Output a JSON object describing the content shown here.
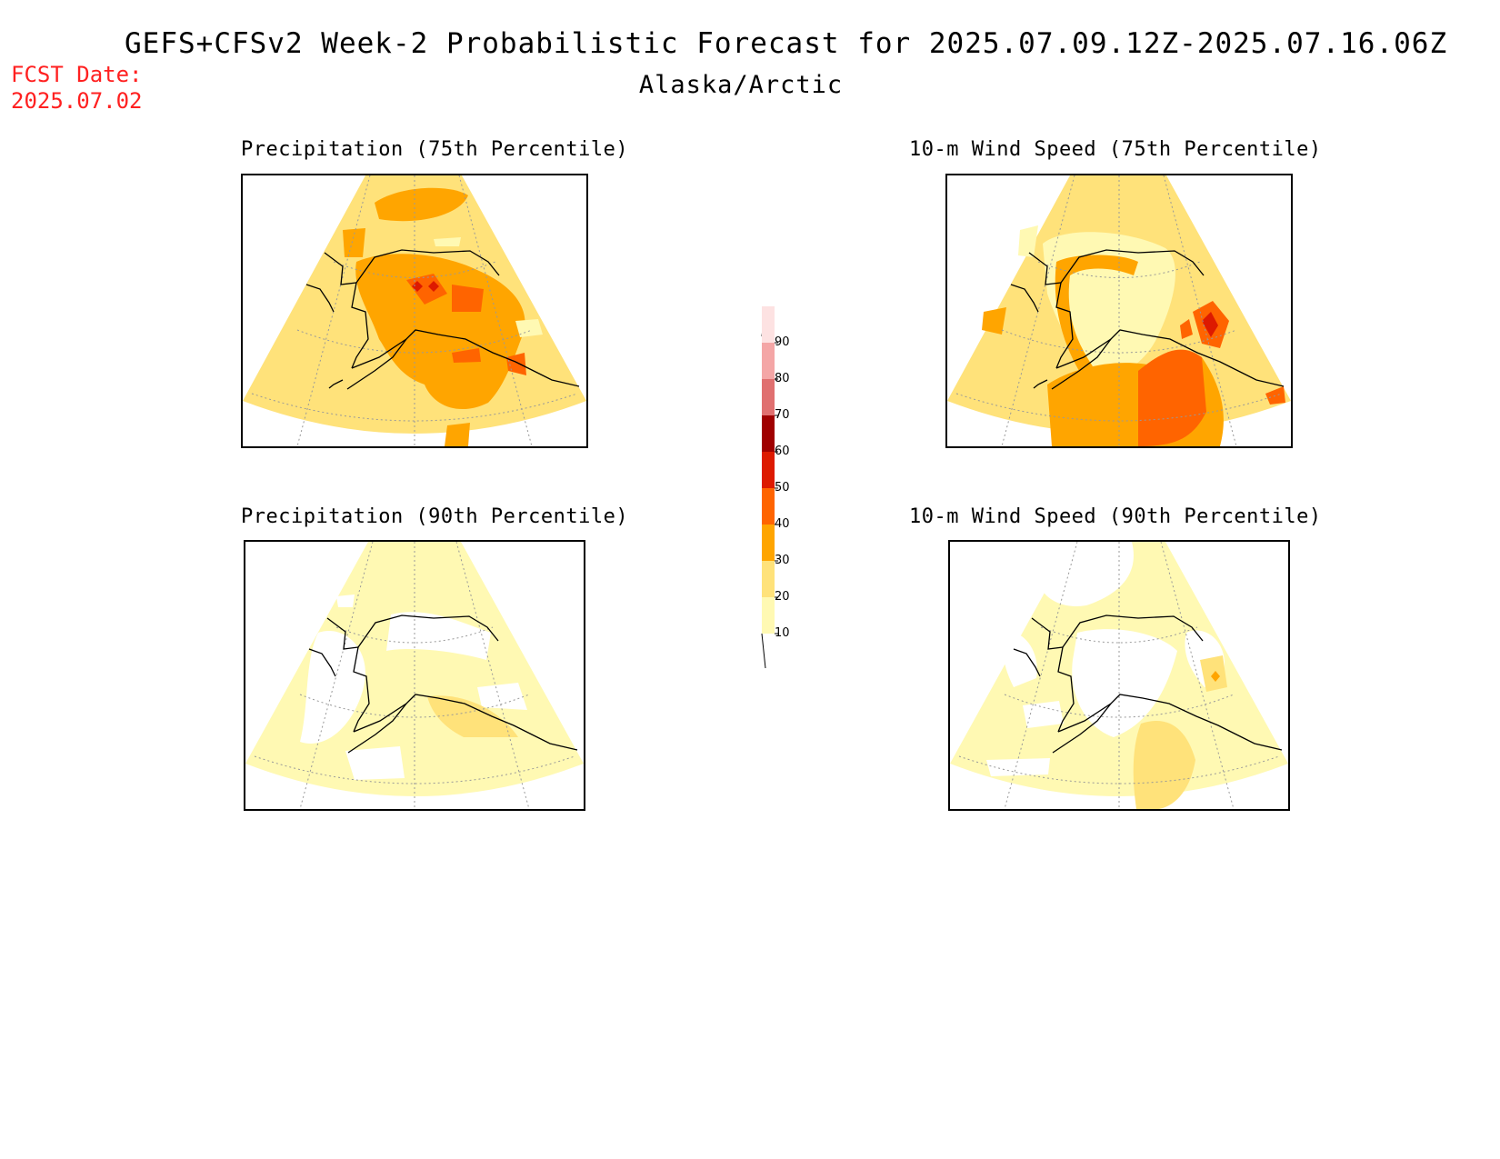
{
  "header": {
    "title": "GEFS+CFSv2 Week-2 Probabilistic Forecast for 2025.07.09.12Z-2025.07.16.06Z",
    "region": "Alaska/Arctic",
    "fcst_label": "FCST Date:",
    "fcst_date": "2025.07.02"
  },
  "panels": [
    {
      "title": "Precipitation (75th Percentile)"
    },
    {
      "title": "10-m Wind Speed (75th Percentile)"
    },
    {
      "title": "Precipitation (90th Percentile)"
    },
    {
      "title": "10-m Wind Speed (90th Percentile)"
    }
  ],
  "colorbar": {
    "levels": [
      "10",
      "20",
      "30",
      "40",
      "50",
      "60",
      "70",
      "80",
      "90"
    ],
    "colors": [
      "#fff9b3",
      "#ffe27a",
      "#ffa500",
      "#ff6400",
      "#dd1a00",
      "#a00000",
      "#e07070",
      "#f4a6a6",
      "#fde2e2"
    ]
  }
}
